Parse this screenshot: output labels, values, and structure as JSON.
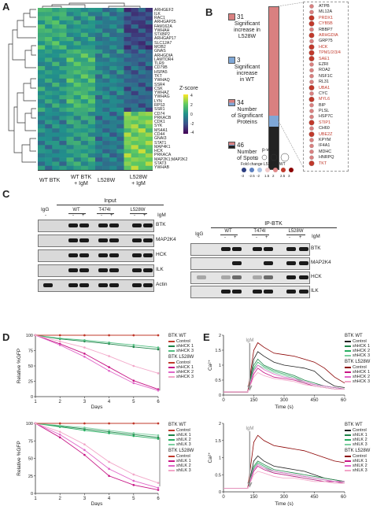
{
  "panels": {
    "A": "A",
    "B": "B",
    "C": "C",
    "D": "D",
    "E": "E"
  },
  "A": {
    "genes": [
      "ARHGEF2",
      "ILK",
      "RAC1",
      "ARHGAP25",
      "FAM162A",
      "YWHAH",
      "STXBP2",
      "ARHGAP17",
      "SLC12A7",
      "MOB2",
      "GNAS",
      "ARHGDIA",
      "LAMTOR4",
      "TLR9",
      "CD79B",
      "HSPA5",
      "TKT",
      "YWHAQ",
      "SSR4",
      "CSK",
      "YWHAZ",
      "YWHAG",
      "LYN",
      "RPS3",
      "SSR1",
      "CD74",
      "PRKACB",
      "CDK1",
      "SYK",
      "MS4A1",
      "CD44",
      "GNAI3",
      "STAT1",
      "MAP4K1",
      "HCK",
      "PRKACA",
      "MAP2K1;MAP2K2",
      "STAT3",
      "YWHAB"
    ],
    "groups": [
      "WT BTK",
      "WT BTK\n+ IgM",
      "L528W",
      "L528W\n+ IgM"
    ],
    "group_lines": [
      [
        "WT BTK"
      ],
      [
        "WT BTK",
        "+ IgM"
      ],
      [
        "L528W"
      ],
      [
        "L528W",
        "+ IgM"
      ]
    ],
    "zscore_title": "Z-score",
    "zscore_ticks": [
      "4",
      "2",
      "0",
      "-2",
      "-4"
    ]
  },
  "B": {
    "stats": [
      {
        "num": "31",
        "label": [
          "Significant",
          "increase in",
          "L528W"
        ],
        "color": "#d98080"
      },
      {
        "num": "3",
        "label": [
          "Significant",
          "increase",
          "in WT"
        ],
        "color": "#7fa7d6"
      },
      {
        "num": "34",
        "label": [
          "Number",
          "of Significant",
          "Proteins"
        ],
        "color": "#ffffff"
      },
      {
        "num": "46",
        "label": [
          "Number",
          "of Spots"
        ],
        "color": "#ffffff"
      }
    ],
    "pvalue_label": "p-value",
    "fold_label": "Fold change L528W / WT",
    "fold_ticks": [
      "-3",
      "-2.5",
      "-2",
      "1.5",
      "2",
      "2.5",
      "3"
    ],
    "proteins": [
      {
        "name": "ATPB",
        "red": false
      },
      {
        "name": "ML12A",
        "red": false
      },
      {
        "name": "PRDX1",
        "red": true
      },
      {
        "name": "CYB5B",
        "red": true
      },
      {
        "name": "RBBP7",
        "red": false
      },
      {
        "name": "ARHGDIA",
        "red": true
      },
      {
        "name": "GRP75",
        "red": false
      },
      {
        "name": "HCK",
        "red": true
      },
      {
        "name": "TPM1/2/3/4",
        "red": true
      },
      {
        "name": "SAE1",
        "red": true
      },
      {
        "name": "EZRI",
        "red": false
      },
      {
        "name": "ROA2",
        "red": false
      },
      {
        "name": "NSF1C",
        "red": false
      },
      {
        "name": "RL31",
        "red": false
      },
      {
        "name": "UBA1",
        "red": true
      },
      {
        "name": "CYC",
        "red": false
      },
      {
        "name": "MYL6",
        "red": true
      },
      {
        "name": "BIP",
        "red": false
      },
      {
        "name": "PLSL",
        "red": false
      },
      {
        "name": "HSP7C",
        "red": false
      },
      {
        "name": "STIP1",
        "red": true
      },
      {
        "name": "CH60",
        "red": false
      },
      {
        "name": "UBE2Z",
        "red": true
      },
      {
        "name": "KPYM",
        "red": false
      },
      {
        "name": "IF4A1",
        "red": false
      },
      {
        "name": "MDHC",
        "red": false
      },
      {
        "name": "HNRPQ",
        "red": false
      },
      {
        "name": "TKT",
        "red": true
      }
    ]
  },
  "C": {
    "input_title": "Input",
    "ip_title": "IP-BTK",
    "igg": "IgG",
    "lanes_left": [
      "WT",
      "T474I",
      "L528W"
    ],
    "lanes_right": [
      "WT",
      "T474I",
      "L528W"
    ],
    "igm_label": "IgM",
    "igm_signs_left": [
      "-",
      "-",
      "+",
      "-",
      "+",
      "-",
      "+"
    ],
    "igm_signs_right": [
      "-",
      "-",
      "+",
      "-",
      "+",
      "-",
      "+"
    ],
    "rows_left": [
      "BTK",
      "MAP2K4",
      "HCK",
      "ILK",
      "Actin"
    ],
    "rows_right": [
      "BTK",
      "MAP2K4",
      "HCK",
      "ILK"
    ]
  },
  "D": {
    "ylabel": "Relative %GFP",
    "xlabel": "Days",
    "xticks": [
      "1",
      "2",
      "3",
      "4",
      "5",
      "6"
    ],
    "yticks": [
      "100",
      "75",
      "50",
      "25",
      "0"
    ],
    "sig": "****",
    "top": {
      "legend_wt_title": "BTK WT",
      "legend_wt": [
        {
          "name": "Control",
          "color": "#c0392b"
        },
        {
          "name": "shHCK 1",
          "color": "#1e8449"
        },
        {
          "name": "shHCK 3",
          "color": "#52be80"
        }
      ],
      "legend_l5_title": "BTK L528W",
      "legend_l5": [
        {
          "name": "Control",
          "color": "#c0392b"
        },
        {
          "name": "shHCK 1",
          "color": "#c71585"
        },
        {
          "name": "shHCK 2",
          "color": "#e066c8"
        },
        {
          "name": "shHCK 3",
          "color": "#f2a6c8"
        }
      ]
    },
    "bottom": {
      "legend_wt_title": "BTK WT",
      "legend_wt": [
        {
          "name": "Control",
          "color": "#c0392b"
        },
        {
          "name": "shILK 1",
          "color": "#1e8449"
        },
        {
          "name": "shILK 2",
          "color": "#27ae60"
        },
        {
          "name": "shILK 3",
          "color": "#7dcea0"
        }
      ],
      "legend_l5_title": "BTK L528W",
      "legend_l5": [
        {
          "name": "Control",
          "color": "#c0392b"
        },
        {
          "name": "shILK 1",
          "color": "#c71585"
        },
        {
          "name": "shILK 2",
          "color": "#e066c8"
        },
        {
          "name": "shILK 3",
          "color": "#f2a6c8"
        }
      ]
    }
  },
  "E": {
    "ylabel": "Ca²⁺",
    "xlabel": "Time (s)",
    "xticks": [
      "0",
      "150",
      "300",
      "450",
      "600"
    ],
    "yticks": [
      "2",
      "1.5",
      "1",
      "0.5",
      "0"
    ],
    "igm": "IgM",
    "top": {
      "legend_wt_title": "BTK WT",
      "legend_wt": [
        "Control",
        "shHCK 1",
        "shHCK 2",
        "shHCK 3"
      ],
      "legend_l5_title": "BTK L528W",
      "legend_l5": [
        "Control",
        "shHCK 1",
        "shHCK 2",
        "shHCK 3"
      ]
    },
    "bottom": {
      "legend_wt_title": "BTK WT",
      "legend_wt": [
        "Control",
        "shILK 1",
        "shILK 2",
        "shILK 3"
      ],
      "legend_l5_title": "BTK L528W",
      "legend_l5": [
        "Control",
        "shILK 1",
        "shILK 2",
        "shILK 3"
      ]
    }
  },
  "chart_data": [
    {
      "type": "line",
      "panel": "D-top",
      "x": [
        1,
        2,
        3,
        4,
        5,
        6
      ],
      "ylim": [
        0,
        100
      ],
      "xlabel": "Days",
      "ylabel": "Relative %GFP",
      "series": [
        {
          "name": "Control",
          "group": "BTK WT",
          "color": "#c0392b",
          "values": [
            100,
            100,
            100,
            100,
            100,
            100
          ]
        },
        {
          "name": "shHCK 1",
          "group": "BTK WT",
          "color": "#1e8449",
          "values": [
            100,
            94,
            90,
            86,
            81,
            77
          ]
        },
        {
          "name": "shHCK 3",
          "group": "BTK WT",
          "color": "#52be80",
          "values": [
            100,
            95,
            92,
            88,
            84,
            80
          ]
        },
        {
          "name": "Control",
          "group": "BTK L528W",
          "color": "#c0392b",
          "values": [
            100,
            100,
            100,
            100,
            100,
            100
          ]
        },
        {
          "name": "shHCK 1",
          "group": "BTK L528W",
          "color": "#c71585",
          "values": [
            100,
            86,
            70,
            48,
            26,
            12
          ]
        },
        {
          "name": "shHCK 2",
          "group": "BTK L528W",
          "color": "#e066c8",
          "values": [
            100,
            84,
            65,
            42,
            22,
            10
          ]
        },
        {
          "name": "shHCK 3",
          "group": "BTK L528W",
          "color": "#f2a6c8",
          "values": [
            100,
            90,
            80,
            66,
            50,
            38
          ]
        }
      ]
    },
    {
      "type": "line",
      "panel": "D-bottom",
      "x": [
        1,
        2,
        3,
        4,
        5,
        6
      ],
      "ylim": [
        0,
        100
      ],
      "xlabel": "Days",
      "ylabel": "Relative %GFP",
      "series": [
        {
          "name": "Control",
          "group": "BTK WT",
          "color": "#c0392b",
          "values": [
            100,
            100,
            100,
            100,
            100,
            100
          ]
        },
        {
          "name": "shILK 1",
          "group": "BTK WT",
          "color": "#1e8449",
          "values": [
            100,
            96,
            92,
            88,
            84,
            80
          ]
        },
        {
          "name": "shILK 2",
          "group": "BTK WT",
          "color": "#27ae60",
          "values": [
            100,
            95,
            90,
            86,
            82,
            78
          ]
        },
        {
          "name": "shILK 3",
          "group": "BTK WT",
          "color": "#7dcea0",
          "values": [
            100,
            97,
            94,
            90,
            86,
            83
          ]
        },
        {
          "name": "Control",
          "group": "BTK L528W",
          "color": "#c0392b",
          "values": [
            100,
            100,
            100,
            100,
            100,
            100
          ]
        },
        {
          "name": "shILK 1",
          "group": "BTK L528W",
          "color": "#c71585",
          "values": [
            100,
            80,
            55,
            25,
            12,
            5
          ]
        },
        {
          "name": "shILK 2",
          "group": "BTK L528W",
          "color": "#e066c8",
          "values": [
            100,
            84,
            62,
            35,
            18,
            8
          ]
        },
        {
          "name": "shILK 3",
          "group": "BTK L528W",
          "color": "#f2a6c8",
          "values": [
            100,
            88,
            70,
            45,
            27,
            15
          ]
        }
      ]
    },
    {
      "type": "line",
      "panel": "E-top",
      "x": [
        0,
        60,
        120,
        150,
        170,
        200,
        250,
        300,
        350,
        400,
        450,
        500,
        550,
        600
      ],
      "ylim": [
        0,
        2
      ],
      "xlabel": "Time (s)",
      "ylabel": "Ca²⁺",
      "series": [
        {
          "name": "Control",
          "group": "BTK WT",
          "color": "#222222",
          "values": [
            0.1,
            0.1,
            0.1,
            1.2,
            1.45,
            1.3,
            1.1,
            1.0,
            0.95,
            0.9,
            0.8,
            0.5,
            0.3,
            0.25
          ]
        },
        {
          "name": "shHCK 1",
          "group": "BTK WT",
          "color": "#1e8449",
          "values": [
            0.1,
            0.1,
            0.1,
            1.0,
            1.2,
            1.0,
            0.85,
            0.75,
            0.65,
            0.5,
            0.4,
            0.3,
            0.25,
            0.2
          ]
        },
        {
          "name": "shHCK 2",
          "group": "BTK WT",
          "color": "#27ae60",
          "values": [
            0.1,
            0.1,
            0.1,
            0.9,
            1.1,
            0.95,
            0.8,
            0.7,
            0.6,
            0.45,
            0.35,
            0.3,
            0.25,
            0.2
          ]
        },
        {
          "name": "shHCK 3",
          "group": "BTK WT",
          "color": "#7dcea0",
          "values": [
            0.1,
            0.1,
            0.1,
            0.85,
            1.0,
            0.9,
            0.75,
            0.65,
            0.55,
            0.4,
            0.3,
            0.25,
            0.2,
            0.2
          ]
        },
        {
          "name": "Control",
          "group": "BTK L528W",
          "color": "#8b0000",
          "values": [
            0.1,
            0.1,
            0.1,
            1.5,
            1.75,
            1.6,
            1.4,
            1.35,
            1.3,
            1.2,
            1.1,
            0.9,
            0.6,
            0.4
          ]
        },
        {
          "name": "shHCK 1",
          "group": "BTK L528W",
          "color": "#c71585",
          "values": [
            0.1,
            0.1,
            0.1,
            0.7,
            0.9,
            0.75,
            0.6,
            0.55,
            0.5,
            0.4,
            0.3,
            0.25,
            0.2,
            0.2
          ]
        },
        {
          "name": "shHCK 2",
          "group": "BTK L528W",
          "color": "#e066c8",
          "values": [
            0.1,
            0.1,
            0.1,
            0.8,
            1.0,
            0.85,
            0.7,
            0.6,
            0.55,
            0.45,
            0.35,
            0.3,
            0.25,
            0.2
          ]
        },
        {
          "name": "shHCK 3",
          "group": "BTK L528W",
          "color": "#f2a6c8",
          "values": [
            0.1,
            0.1,
            0.1,
            0.6,
            0.75,
            0.65,
            0.55,
            0.5,
            0.45,
            0.35,
            0.3,
            0.25,
            0.2,
            0.2
          ]
        }
      ]
    },
    {
      "type": "line",
      "panel": "E-bottom",
      "x": [
        0,
        60,
        120,
        150,
        170,
        200,
        250,
        300,
        350,
        400,
        450,
        500,
        550,
        600
      ],
      "ylim": [
        0,
        2
      ],
      "xlabel": "Time (s)",
      "ylabel": "Ca²⁺",
      "series": [
        {
          "name": "Control",
          "group": "BTK WT",
          "color": "#222222",
          "values": [
            0.1,
            0.1,
            0.1,
            0.9,
            1.05,
            0.9,
            0.75,
            0.7,
            0.65,
            0.6,
            0.5,
            0.4,
            0.35,
            0.3
          ]
        },
        {
          "name": "shILK 1",
          "group": "BTK WT",
          "color": "#1e8449",
          "values": [
            0.1,
            0.1,
            0.1,
            0.75,
            0.9,
            0.8,
            0.65,
            0.6,
            0.55,
            0.5,
            0.45,
            0.4,
            0.35,
            0.3
          ]
        },
        {
          "name": "shILK 2",
          "group": "BTK WT",
          "color": "#27ae60",
          "values": [
            0.1,
            0.1,
            0.1,
            0.7,
            0.85,
            0.75,
            0.6,
            0.55,
            0.5,
            0.45,
            0.4,
            0.35,
            0.3,
            0.3
          ]
        },
        {
          "name": "shILK 3",
          "group": "BTK WT",
          "color": "#7dcea0",
          "values": [
            0.1,
            0.1,
            0.1,
            0.65,
            0.8,
            0.7,
            0.55,
            0.5,
            0.45,
            0.4,
            0.35,
            0.3,
            0.3,
            0.25
          ]
        },
        {
          "name": "Control",
          "group": "BTK L528W",
          "color": "#8b0000",
          "values": [
            0.1,
            0.1,
            0.1,
            1.45,
            1.65,
            1.5,
            1.35,
            1.3,
            1.25,
            1.2,
            1.1,
            1.0,
            0.9,
            0.85
          ]
        },
        {
          "name": "shILK 1",
          "group": "BTK L528W",
          "color": "#c71585",
          "values": [
            0.1,
            0.1,
            0.1,
            0.6,
            0.75,
            0.65,
            0.55,
            0.5,
            0.45,
            0.4,
            0.35,
            0.3,
            0.3,
            0.25
          ]
        },
        {
          "name": "shILK 2",
          "group": "BTK L528W",
          "color": "#e066c8",
          "values": [
            0.1,
            0.1,
            0.1,
            0.65,
            0.8,
            0.7,
            0.6,
            0.55,
            0.5,
            0.45,
            0.4,
            0.35,
            0.3,
            0.3
          ]
        },
        {
          "name": "shILK 3",
          "group": "BTK L528W",
          "color": "#f2a6c8",
          "values": [
            0.1,
            0.1,
            0.1,
            0.5,
            0.6,
            0.55,
            0.45,
            0.4,
            0.4,
            0.35,
            0.3,
            0.3,
            0.25,
            0.25
          ]
        }
      ]
    }
  ]
}
